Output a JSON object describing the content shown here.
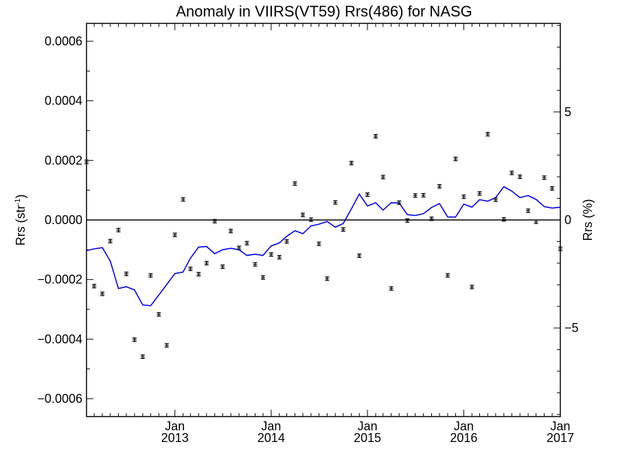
{
  "chart_data": {
    "type": "scatter",
    "title": "Anomaly in VIIRS(VT59) Rrs(486) for NASG",
    "ylabel": "Rrs (str",
    "ylabel_sup": "-1",
    "ylabel_close": ")",
    "y2label": "Rrs (%)",
    "x_range": [
      "2012-02-01",
      "2017-01-01"
    ],
    "ylim": [
      -0.00066,
      0.00066
    ],
    "y2lim": [
      -9.1,
      9.1
    ],
    "yticks": [
      {
        "value": 0.0006,
        "label": "0.0006"
      },
      {
        "value": 0.0004,
        "label": "0.0004"
      },
      {
        "value": 0.0002,
        "label": "0.0002"
      },
      {
        "value": 0.0,
        "label": "0.0000"
      },
      {
        "value": -0.0002,
        "label": "−0.0002"
      },
      {
        "value": -0.0004,
        "label": "−0.0004"
      },
      {
        "value": -0.0006,
        "label": "−0.0006"
      }
    ],
    "y2ticks": [
      {
        "value": 5,
        "label": "5"
      },
      {
        "value": 0,
        "label": "0"
      },
      {
        "value": -5,
        "label": "−5"
      }
    ],
    "xticks": [
      {
        "date": "2013-01-01",
        "month": "Jan",
        "year": "2013"
      },
      {
        "date": "2014-01-01",
        "month": "Jan",
        "year": "2014"
      },
      {
        "date": "2015-01-01",
        "month": "Jan",
        "year": "2015"
      },
      {
        "date": "2016-01-01",
        "month": "Jan",
        "year": "2016"
      },
      {
        "date": "2017-01-01",
        "month": "Jan",
        "year": "2017"
      }
    ],
    "grid": false,
    "points": [
      {
        "x": "2012-02-01",
        "y": 0.000195
      },
      {
        "x": "2012-03-01",
        "y": -0.000222
      },
      {
        "x": "2012-04-01",
        "y": -0.000248
      },
      {
        "x": "2012-05-01",
        "y": -7.1e-05
      },
      {
        "x": "2012-06-01",
        "y": -3.4e-05
      },
      {
        "x": "2012-07-01",
        "y": -0.000181
      },
      {
        "x": "2012-08-01",
        "y": -0.000402
      },
      {
        "x": "2012-09-01",
        "y": -0.000459
      },
      {
        "x": "2012-10-01",
        "y": -0.000186
      },
      {
        "x": "2012-11-01",
        "y": -0.000317
      },
      {
        "x": "2012-12-01",
        "y": -0.000421
      },
      {
        "x": "2013-01-01",
        "y": -5e-05
      },
      {
        "x": "2013-02-01",
        "y": 6.9e-05
      },
      {
        "x": "2013-03-01",
        "y": -0.000164
      },
      {
        "x": "2013-04-01",
        "y": -0.000182
      },
      {
        "x": "2013-05-01",
        "y": -0.000145
      },
      {
        "x": "2013-06-01",
        "y": -4e-06
      },
      {
        "x": "2013-07-01",
        "y": -0.000157
      },
      {
        "x": "2013-08-01",
        "y": -3.7e-05
      },
      {
        "x": "2013-09-01",
        "y": -9.4e-05
      },
      {
        "x": "2013-10-01",
        "y": -7.8e-05
      },
      {
        "x": "2013-11-01",
        "y": -0.000149
      },
      {
        "x": "2013-12-01",
        "y": -0.000193
      },
      {
        "x": "2014-01-01",
        "y": -0.000116
      },
      {
        "x": "2014-02-01",
        "y": -0.000125
      },
      {
        "x": "2014-03-01",
        "y": -7.2e-05
      },
      {
        "x": "2014-04-01",
        "y": 0.000122
      },
      {
        "x": "2014-05-01",
        "y": 1.7e-05
      },
      {
        "x": "2014-06-01",
        "y": 1e-06
      },
      {
        "x": "2014-07-01",
        "y": -8e-05
      },
      {
        "x": "2014-08-01",
        "y": -0.000197
      },
      {
        "x": "2014-09-01",
        "y": 5.9e-05
      },
      {
        "x": "2014-10-01",
        "y": -3.2e-05
      },
      {
        "x": "2014-11-01",
        "y": 0.000191
      },
      {
        "x": "2014-12-01",
        "y": -0.00012
      },
      {
        "x": "2015-01-01",
        "y": 8.5e-05
      },
      {
        "x": "2015-02-01",
        "y": 0.000281
      },
      {
        "x": "2015-03-01",
        "y": 0.000144
      },
      {
        "x": "2015-04-01",
        "y": -0.00023
      },
      {
        "x": "2015-05-01",
        "y": 5.8e-05
      },
      {
        "x": "2015-06-01",
        "y": -2e-06
      },
      {
        "x": "2015-07-01",
        "y": 8.2e-05
      },
      {
        "x": "2015-08-01",
        "y": 8.3e-05
      },
      {
        "x": "2015-09-01",
        "y": 4e-06
      },
      {
        "x": "2015-10-01",
        "y": 0.000113
      },
      {
        "x": "2015-11-01",
        "y": -0.000186
      },
      {
        "x": "2015-12-01",
        "y": 0.000205
      },
      {
        "x": "2016-01-01",
        "y": 7.8e-05
      },
      {
        "x": "2016-02-01",
        "y": -0.000225
      },
      {
        "x": "2016-03-01",
        "y": 8.9e-05
      },
      {
        "x": "2016-04-01",
        "y": 0.000288
      },
      {
        "x": "2016-05-01",
        "y": 6.8e-05
      },
      {
        "x": "2016-06-01",
        "y": 2e-06
      },
      {
        "x": "2016-07-01",
        "y": 0.000158
      },
      {
        "x": "2016-08-01",
        "y": 0.000145
      },
      {
        "x": "2016-09-01",
        "y": 3.1e-05
      },
      {
        "x": "2016-10-01",
        "y": -6e-06
      },
      {
        "x": "2016-11-01",
        "y": 0.000142
      },
      {
        "x": "2016-12-01",
        "y": 0.000106
      },
      {
        "x": "2017-01-01",
        "y": -9.7e-05
      }
    ],
    "trend_line": {
      "color": "#0000ee",
      "points": [
        {
          "x": "2012-02-01",
          "y": -0.000103
        },
        {
          "x": "2012-03-01",
          "y": -9.7e-05
        },
        {
          "x": "2012-04-01",
          "y": -9.3e-05
        },
        {
          "x": "2012-05-01",
          "y": -0.000138
        },
        {
          "x": "2012-06-01",
          "y": -0.00023
        },
        {
          "x": "2012-07-01",
          "y": -0.000224
        },
        {
          "x": "2012-08-01",
          "y": -0.000235
        },
        {
          "x": "2012-09-01",
          "y": -0.000285
        },
        {
          "x": "2012-10-01",
          "y": -0.000288
        },
        {
          "x": "2012-11-01",
          "y": -0.000252
        },
        {
          "x": "2012-12-01",
          "y": -0.000217
        },
        {
          "x": "2013-01-01",
          "y": -0.00018
        },
        {
          "x": "2013-02-01",
          "y": -0.000175
        },
        {
          "x": "2013-03-01",
          "y": -0.000128
        },
        {
          "x": "2013-04-01",
          "y": -9.1e-05
        },
        {
          "x": "2013-05-01",
          "y": -8.9e-05
        },
        {
          "x": "2013-06-01",
          "y": -0.000113
        },
        {
          "x": "2013-07-01",
          "y": -0.0001
        },
        {
          "x": "2013-08-01",
          "y": -9.5e-05
        },
        {
          "x": "2013-09-01",
          "y": -0.0001
        },
        {
          "x": "2013-10-01",
          "y": -0.000119
        },
        {
          "x": "2013-11-01",
          "y": -0.000115
        },
        {
          "x": "2013-12-01",
          "y": -0.000119
        },
        {
          "x": "2014-01-01",
          "y": -8.7e-05
        },
        {
          "x": "2014-02-01",
          "y": -7.7e-05
        },
        {
          "x": "2014-03-01",
          "y": -5.5e-05
        },
        {
          "x": "2014-04-01",
          "y": -3.6e-05
        },
        {
          "x": "2014-05-01",
          "y": -4.6e-05
        },
        {
          "x": "2014-06-01",
          "y": -2e-05
        },
        {
          "x": "2014-07-01",
          "y": -1.4e-05
        },
        {
          "x": "2014-08-01",
          "y": -5e-06
        },
        {
          "x": "2014-09-01",
          "y": -2.4e-05
        },
        {
          "x": "2014-10-01",
          "y": -1.2e-05
        },
        {
          "x": "2014-11-01",
          "y": 3.7e-05
        },
        {
          "x": "2014-12-01",
          "y": 8.7e-05
        },
        {
          "x": "2015-01-01",
          "y": 4.7e-05
        },
        {
          "x": "2015-02-01",
          "y": 5.8e-05
        },
        {
          "x": "2015-03-01",
          "y": 3.3e-05
        },
        {
          "x": "2015-04-01",
          "y": 5.8e-05
        },
        {
          "x": "2015-05-01",
          "y": 5.7e-05
        },
        {
          "x": "2015-06-01",
          "y": 1.8e-05
        },
        {
          "x": "2015-07-01",
          "y": 1.5e-05
        },
        {
          "x": "2015-08-01",
          "y": 2.1e-05
        },
        {
          "x": "2015-09-01",
          "y": 4.2e-05
        },
        {
          "x": "2015-10-01",
          "y": 5.5e-05
        },
        {
          "x": "2015-11-01",
          "y": 1e-05
        },
        {
          "x": "2015-12-01",
          "y": 1e-05
        },
        {
          "x": "2016-01-01",
          "y": 5.3e-05
        },
        {
          "x": "2016-02-01",
          "y": 4.3e-05
        },
        {
          "x": "2016-03-01",
          "y": 6.8e-05
        },
        {
          "x": "2016-04-01",
          "y": 6.3e-05
        },
        {
          "x": "2016-05-01",
          "y": 7.5e-05
        },
        {
          "x": "2016-06-01",
          "y": 0.000112
        },
        {
          "x": "2016-07-01",
          "y": 9.7e-05
        },
        {
          "x": "2016-08-01",
          "y": 7.5e-05
        },
        {
          "x": "2016-09-01",
          "y": 8.2e-05
        },
        {
          "x": "2016-10-01",
          "y": 6.9e-05
        },
        {
          "x": "2016-11-01",
          "y": 4.5e-05
        },
        {
          "x": "2016-12-01",
          "y": 4e-05
        },
        {
          "x": "2017-01-01",
          "y": 4.3e-05
        }
      ]
    }
  }
}
